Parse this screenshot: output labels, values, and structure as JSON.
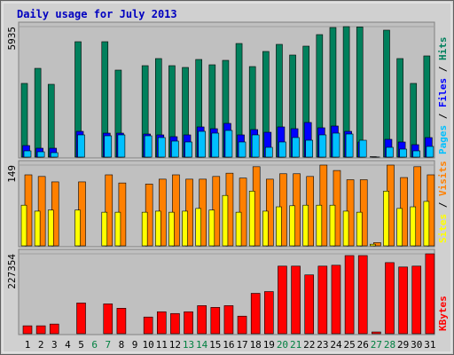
{
  "title": "Daily usage for July 2013",
  "legend_separator": "/",
  "chart_data": [
    {
      "type": "bar",
      "ylim": [
        0,
        5935
      ],
      "yticks": [
        5935
      ],
      "series": [
        {
          "name": "Hits",
          "color": "#00805c",
          "values": [
            3352,
            4037,
            3311,
            0,
            5249,
            0,
            5249,
            3957,
            0,
            4159,
            4482,
            4159,
            4078,
            4441,
            4199,
            4401,
            5168,
            4118,
            4805,
            5128,
            4643,
            5047,
            5572,
            5895,
            5935,
            5920,
            20,
            5774,
            4482,
            3352,
            4603
          ]
        },
        {
          "name": "Files",
          "color": "#0000ff",
          "values": [
            525,
            404,
            404,
            0,
            1171,
            0,
            1090,
            1090,
            0,
            1050,
            1010,
            929,
            1010,
            1373,
            1292,
            1534,
            1010,
            1252,
            1130,
            1373,
            1292,
            1575,
            1333,
            1414,
            1171,
            687,
            5,
            808,
            687,
            565,
            888
          ]
        },
        {
          "name": "Pages",
          "color": "#00c0ff",
          "values": [
            283,
            242,
            202,
            0,
            1010,
            0,
            969,
            1010,
            0,
            969,
            889,
            727,
            687,
            1171,
            1090,
            1212,
            687,
            1010,
            444,
            687,
            889,
            767,
            1010,
            1090,
            1050,
            767,
            3,
            444,
            363,
            283,
            485
          ]
        }
      ]
    },
    {
      "type": "bar",
      "ylim": [
        0,
        149
      ],
      "yticks": [
        149
      ],
      "series": [
        {
          "name": "Visits",
          "color": "#ff8000",
          "values": [
            131,
            128,
            118,
            0,
            118,
            0,
            131,
            116,
            0,
            114,
            123,
            131,
            123,
            123,
            128,
            134,
            125,
            146,
            123,
            133,
            133,
            128,
            149,
            139,
            122,
            122,
            6,
            149,
            126,
            146,
            131
          ]
        },
        {
          "name": "Sites",
          "color": "#ffff00",
          "values": [
            75,
            64,
            66,
            0,
            66,
            0,
            62,
            62,
            0,
            62,
            64,
            62,
            64,
            69,
            66,
            93,
            62,
            101,
            64,
            72,
            74,
            75,
            75,
            75,
            64,
            62,
            3,
            101,
            69,
            72,
            82
          ]
        }
      ]
    },
    {
      "type": "bar",
      "ylim": [
        0,
        227354
      ],
      "yticks": [
        227354
      ],
      "categories": [
        "1",
        "2",
        "3",
        "4",
        "5",
        "6",
        "7",
        "8",
        "9",
        "10",
        "11",
        "12",
        "13",
        "14",
        "15",
        "16",
        "17",
        "18",
        "19",
        "20",
        "21",
        "22",
        "23",
        "24",
        "25",
        "26",
        "27",
        "28",
        "29",
        "30",
        "31"
      ],
      "category_colors": [
        "#000000",
        "#000000",
        "#000000",
        "#000000",
        "#000000",
        "#008040",
        "#008040",
        "#000000",
        "#000000",
        "#000000",
        "#000000",
        "#000000",
        "#008040",
        "#008040",
        "#000000",
        "#000000",
        "#000000",
        "#000000",
        "#000000",
        "#008040",
        "#008040",
        "#000000",
        "#000000",
        "#000000",
        "#000000",
        "#000000",
        "#008040",
        "#008040",
        "#000000",
        "#000000",
        "#000000"
      ],
      "series": [
        {
          "name": "KBytes",
          "color": "#ff0000",
          "values": [
            22485,
            22485,
            27481,
            0,
            87434,
            0,
            84936,
            72442,
            0,
            47470,
            62464,
            57466,
            62464,
            79940,
            74945,
            79940,
            49970,
            114926,
            119922,
            192378,
            192378,
            167396,
            192378,
            194876,
            222369,
            222369,
            5000,
            202380,
            189882,
            192378,
            227354
          ]
        }
      ]
    }
  ]
}
